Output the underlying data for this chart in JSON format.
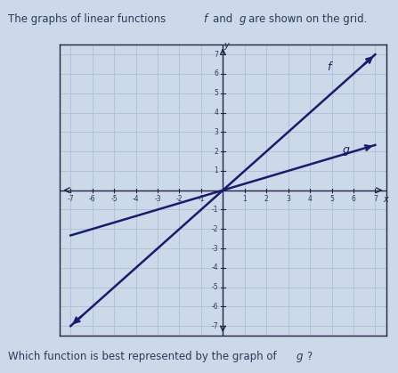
{
  "title": "The graphs of linear functions ƒand ɡare shown on the grid.",
  "subtitle": "Which function is best represented by the graph of ɡ?",
  "background_color": "#ccd9e8",
  "grid_color": "#b0c4d8",
  "axis_color": "#222244",
  "line_f_slope": 1.0,
  "line_f_intercept": 0,
  "line_f_color": "#1a1a6e",
  "line_f_label": "ƒ",
  "line_g_slope": 0.333,
  "line_g_intercept": 0,
  "line_g_color": "#1a1a6e",
  "line_g_label": "ɡ",
  "xmin": -7,
  "xmax": 7,
  "ymin": -7,
  "ymax": 7,
  "xlabel": "χ",
  "ylabel": "γ",
  "title_fontsize": 9,
  "subtitle_fontsize": 9,
  "tick_fontsize": 6,
  "label_fontsize": 8
}
